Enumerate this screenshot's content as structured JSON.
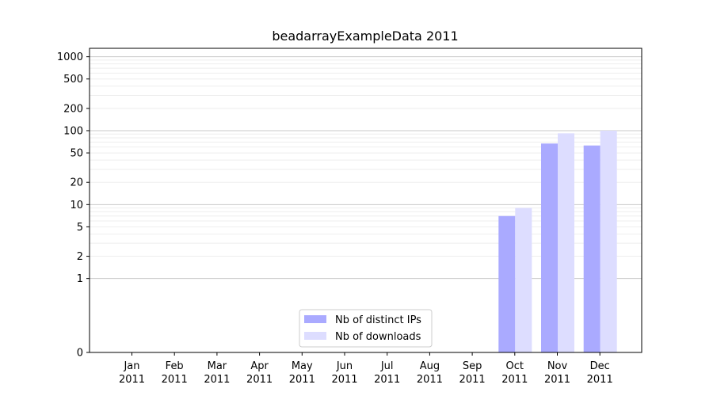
{
  "chart_data": {
    "type": "bar",
    "title": "beadarrayExampleData 2011",
    "xlabel": "",
    "ylabel": "",
    "y_scale": "symlog",
    "ylim": [
      0,
      1300
    ],
    "y_ticks": [
      0,
      1,
      2,
      5,
      10,
      20,
      50,
      100,
      200,
      500,
      1000
    ],
    "grid": "horizontal",
    "legend_position": "lower center",
    "categories": [
      [
        "Jan",
        "2011"
      ],
      [
        "Feb",
        "2011"
      ],
      [
        "Mar",
        "2011"
      ],
      [
        "Apr",
        "2011"
      ],
      [
        "May",
        "2011"
      ],
      [
        "Jun",
        "2011"
      ],
      [
        "Jul",
        "2011"
      ],
      [
        "Aug",
        "2011"
      ],
      [
        "Sep",
        "2011"
      ],
      [
        "Oct",
        "2011"
      ],
      [
        "Nov",
        "2011"
      ],
      [
        "Dec",
        "2011"
      ]
    ],
    "series": [
      {
        "name": "Nb of distinct IPs",
        "color": "#aaaaff",
        "values": [
          0,
          0,
          0,
          0,
          0,
          0,
          0,
          0,
          0,
          7,
          67,
          63
        ]
      },
      {
        "name": "Nb of downloads",
        "color": "#ddddff",
        "values": [
          0,
          0,
          0,
          0,
          0,
          0,
          0,
          0,
          0,
          9,
          92,
          100
        ]
      }
    ]
  }
}
